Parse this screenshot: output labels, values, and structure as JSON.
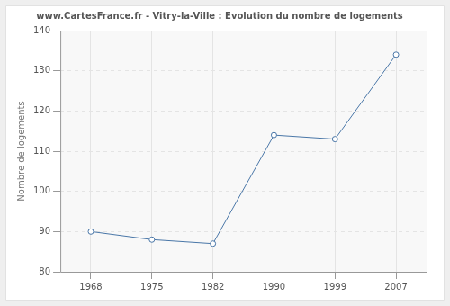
{
  "chart_data": {
    "type": "line",
    "title": "www.CartesFrance.fr - Vitry-la-Ville : Evolution du nombre de logements",
    "y_label": "Nombre de logements",
    "categories": [
      "1968",
      "1975",
      "1982",
      "1990",
      "1999",
      "2007"
    ],
    "values": [
      90,
      88,
      87,
      114,
      113,
      134
    ],
    "color": "#4a77a8",
    "marker": "circle",
    "line_style": "solid",
    "ylim": [
      80,
      140
    ],
    "yticks": [
      80,
      90,
      100,
      110,
      120,
      130,
      140
    ],
    "grid": true
  }
}
